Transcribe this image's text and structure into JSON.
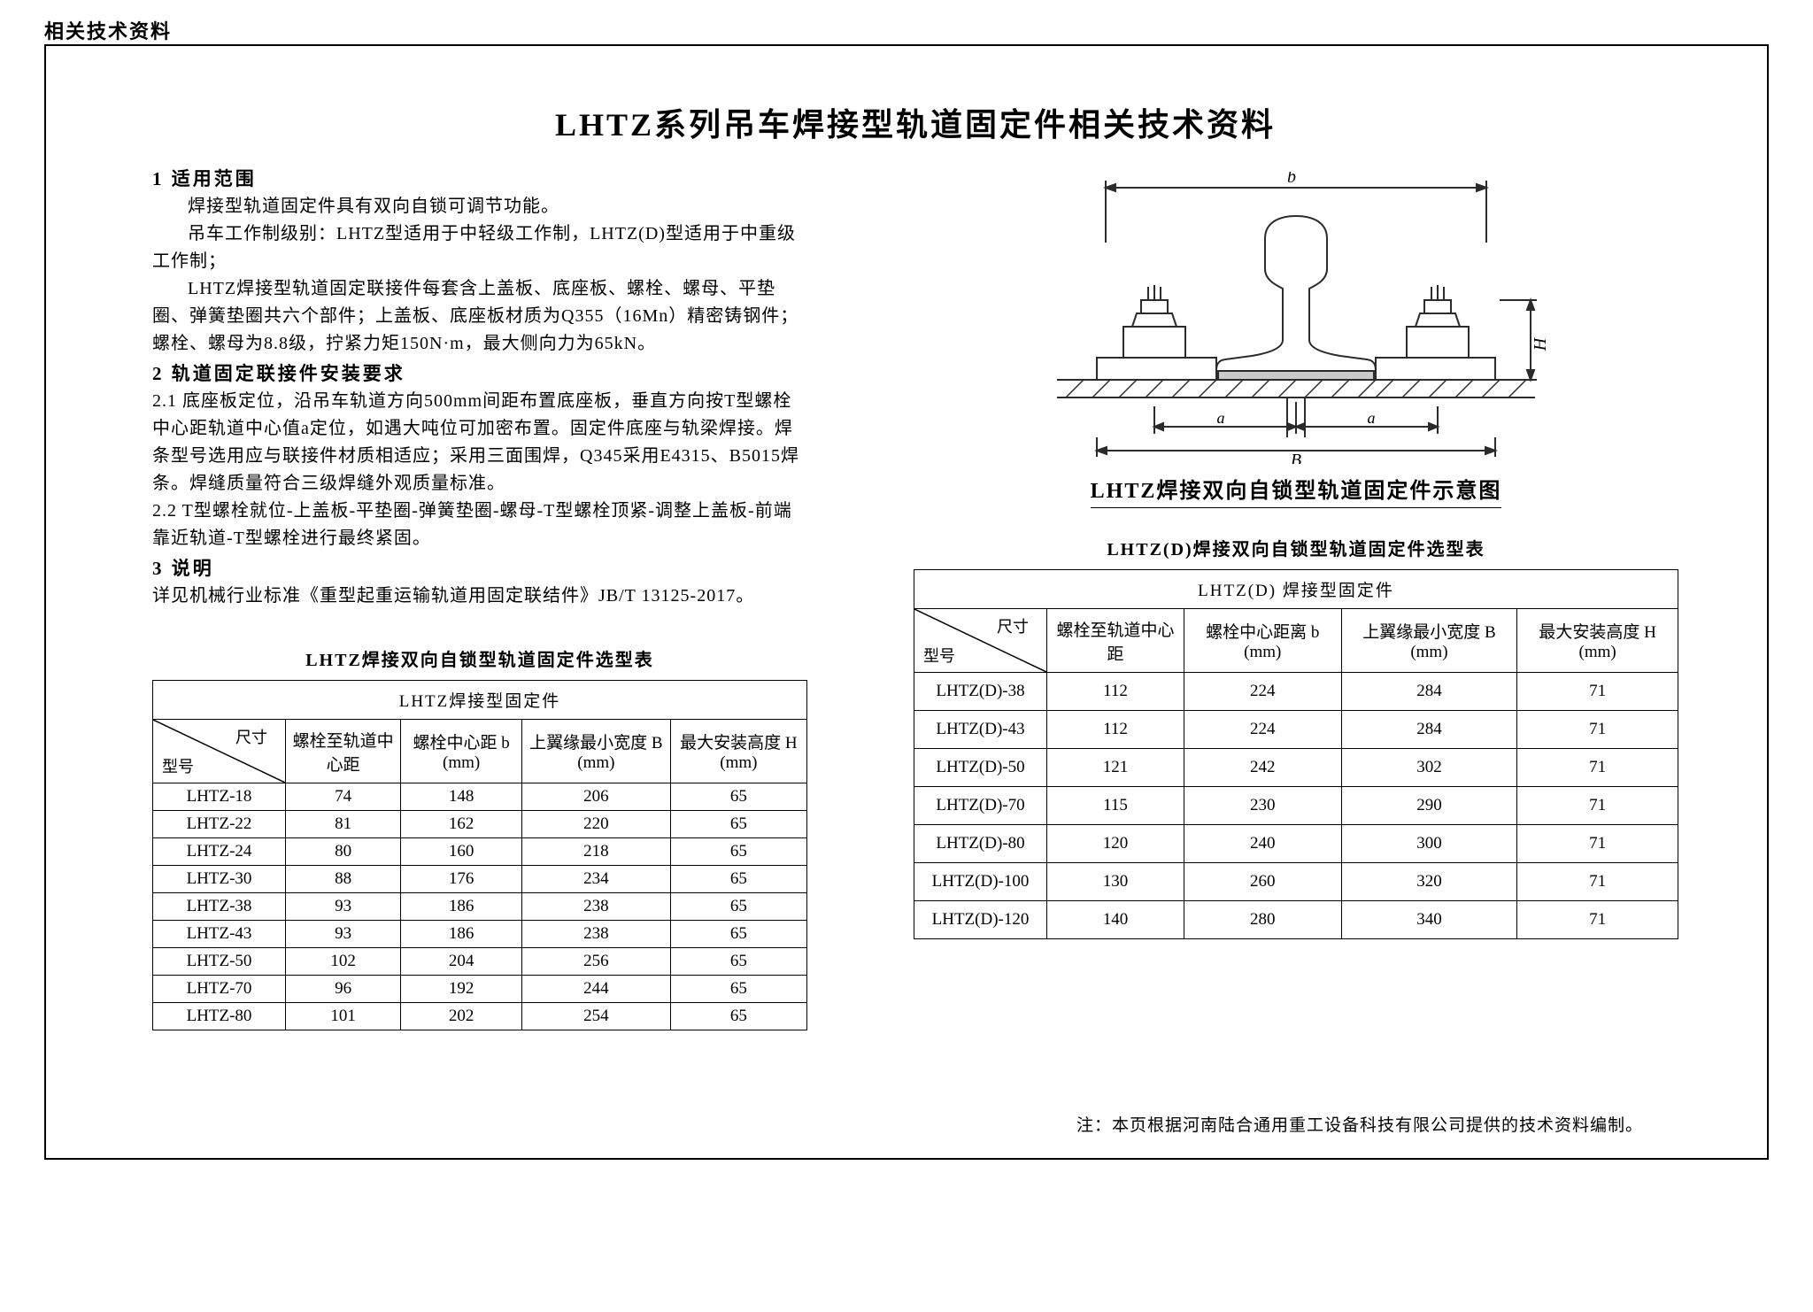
{
  "page_header": "相关技术资料",
  "main_title": "LHTZ系列吊车焊接型轨道固定件相关技术资料",
  "sections": {
    "s1_head": "1   适用范围",
    "s1_p1": "焊接型轨道固定件具有双向自锁可调节功能。",
    "s1_p2": "吊车工作制级别：LHTZ型适用于中轻级工作制，LHTZ(D)型适用于中重级工作制；",
    "s1_p3": "LHTZ焊接型轨道固定联接件每套含上盖板、底座板、螺栓、螺母、平垫圈、弹簧垫圈共六个部件；上盖板、底座板材质为Q355（16Mn）精密铸钢件；螺栓、螺母为8.8级，拧紧力矩150N·m，最大侧向力为65kN。",
    "s2_head": "2   轨道固定联接件安装要求",
    "s2_p1": "2.1 底座板定位，沿吊车轨道方向500mm间距布置底座板，垂直方向按T型螺栓中心距轨道中心值a定位，如遇大吨位可加密布置。固定件底座与轨梁焊接。焊条型号选用应与联接件材质相适应；采用三面围焊，Q345采用E4315、B5015焊条。焊缝质量符合三级焊缝外观质量标准。",
    "s2_p2": "2.2 T型螺栓就位-上盖板-平垫圈-弹簧垫圈-螺母-T型螺栓顶紧-调整上盖板-前端靠近轨道-T型螺栓进行最终紧固。",
    "s3_head": "3   说明",
    "s3_p1": "详见机械行业标准《重型起重运输轨道用固定联结件》JB/T 13125-2017。"
  },
  "figure": {
    "caption": "LHTZ焊接双向自锁型轨道固定件示意图",
    "labels": {
      "b": "b",
      "H": "H",
      "a": "a",
      "B": "B"
    },
    "stroke": "#2b2b2b",
    "stroke_width": 2
  },
  "table_left": {
    "caption": "LHTZ焊接双向自锁型轨道固定件选型表",
    "super_head": "LHTZ焊接型固定件",
    "diag_top": "尺寸",
    "diag_bot": "型号",
    "columns": [
      "螺栓至轨道中心距",
      "螺栓中心距 b (mm)",
      "上翼缘最小宽度 B (mm)",
      "最大安装高度 H (mm)"
    ],
    "rows": [
      [
        "LHTZ-18",
        "74",
        "148",
        "206",
        "65"
      ],
      [
        "LHTZ-22",
        "81",
        "162",
        "220",
        "65"
      ],
      [
        "LHTZ-24",
        "80",
        "160",
        "218",
        "65"
      ],
      [
        "LHTZ-30",
        "88",
        "176",
        "234",
        "65"
      ],
      [
        "LHTZ-38",
        "93",
        "186",
        "238",
        "65"
      ],
      [
        "LHTZ-43",
        "93",
        "186",
        "238",
        "65"
      ],
      [
        "LHTZ-50",
        "102",
        "204",
        "256",
        "65"
      ],
      [
        "LHTZ-70",
        "96",
        "192",
        "244",
        "65"
      ],
      [
        "LHTZ-80",
        "101",
        "202",
        "254",
        "65"
      ]
    ]
  },
  "table_right": {
    "caption": "LHTZ(D)焊接双向自锁型轨道固定件选型表",
    "super_head": "LHTZ(D) 焊接型固定件",
    "diag_top": "尺寸",
    "diag_bot": "型号",
    "columns": [
      "螺栓至轨道中心距",
      "螺栓中心距离 b (mm)",
      "上翼缘最小宽度 B (mm)",
      "最大安装高度 H (mm)"
    ],
    "rows": [
      [
        "LHTZ(D)-38",
        "112",
        "224",
        "284",
        "71"
      ],
      [
        "LHTZ(D)-43",
        "112",
        "224",
        "284",
        "71"
      ],
      [
        "LHTZ(D)-50",
        "121",
        "242",
        "302",
        "71"
      ],
      [
        "LHTZ(D)-70",
        "115",
        "230",
        "290",
        "71"
      ],
      [
        "LHTZ(D)-80",
        "120",
        "240",
        "300",
        "71"
      ],
      [
        "LHTZ(D)-100",
        "130",
        "260",
        "320",
        "71"
      ],
      [
        "LHTZ(D)-120",
        "140",
        "280",
        "340",
        "71"
      ]
    ]
  },
  "footnote": "注：本页根据河南陆合通用重工设备科技有限公司提供的技术资料编制。"
}
